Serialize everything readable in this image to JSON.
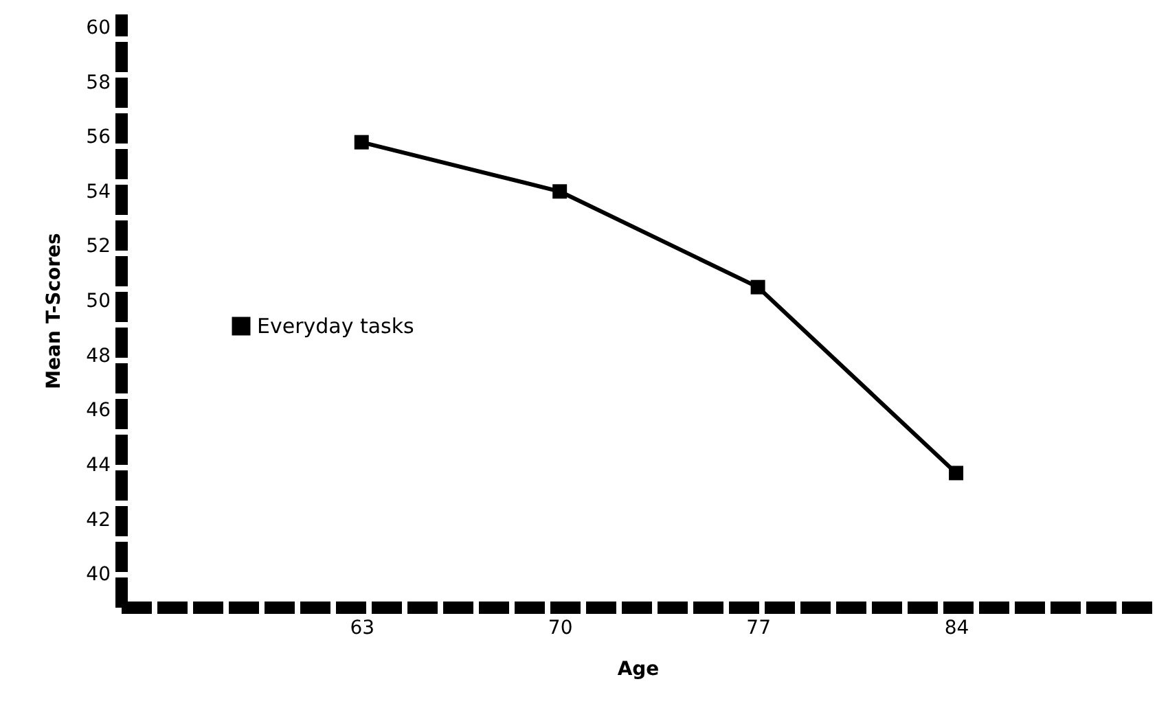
{
  "chart_data": {
    "type": "line",
    "xlabel": "Age",
    "ylabel": "Mean T-Scores",
    "x": [
      63,
      70,
      77,
      84
    ],
    "series": [
      {
        "name": "Everyday tasks",
        "color": "#000000",
        "values": [
          55.8,
          54,
          50.5,
          43.7
        ]
      }
    ],
    "xlim": [
      54.5,
      91
    ],
    "xticks": [
      63,
      70,
      77,
      84
    ],
    "ylim": [
      38.8,
      60.5
    ],
    "yticks": [
      40,
      42,
      44,
      46,
      48,
      50,
      52,
      54,
      56,
      58,
      60
    ],
    "grid": false,
    "legend": "left",
    "marker": "square",
    "line_style": "solid"
  }
}
